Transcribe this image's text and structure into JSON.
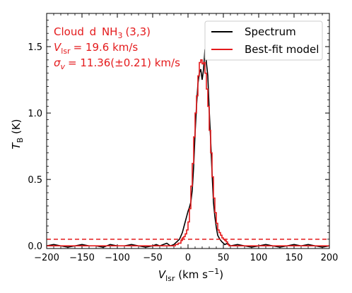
{
  "chart_data": {
    "type": "line",
    "xlabel": "V_lsr (km s^-1)",
    "ylabel": "T_B (K)",
    "xlim": [
      -200,
      200
    ],
    "ylim": [
      -0.02,
      1.75
    ],
    "xticks": [
      -200,
      -150,
      -100,
      -50,
      0,
      50,
      100,
      150,
      200
    ],
    "yticks": [
      0.0,
      0.5,
      1.0,
      1.5
    ],
    "xtick_labels": [
      "−200",
      "−150",
      "−100",
      "−50",
      "0",
      "50",
      "100",
      "150",
      "200"
    ],
    "ytick_labels": [
      "0.0",
      "0.5",
      "1.0",
      "1.5"
    ],
    "legend_position": "top-right",
    "colors": {
      "spectrum": "#000000",
      "model": "#e41a1c",
      "annotation": "#e41a1c"
    },
    "annotations": {
      "line1_prefix": "Cloud",
      "line1_cloud": "d",
      "line1_mol": "NH",
      "line1_sub": "3",
      "line1_trans": "(3,3)",
      "line2_var": "V",
      "line2_sub": "lsr",
      "line2_value": "= 19.6 km/s",
      "line3_var": "σ",
      "line3_sub": "v",
      "line3_value": "= 11.36(±0.21) km/s"
    },
    "threshold_line": {
      "y": 0.05,
      "style": "dashed"
    },
    "series": [
      {
        "name": "Spectrum",
        "style": "line",
        "x": [
          -200,
          -190,
          -180,
          -170,
          -160,
          -150,
          -140,
          -130,
          -120,
          -110,
          -100,
          -90,
          -80,
          -70,
          -60,
          -50,
          -45,
          -40,
          -35,
          -30,
          -25,
          -20,
          -16,
          -12,
          -8,
          -5,
          -2,
          0,
          2,
          4,
          6,
          8,
          10,
          12,
          14,
          16,
          18,
          20,
          22,
          24,
          26,
          28,
          30,
          32,
          34,
          36,
          38,
          40,
          42,
          45,
          48,
          52,
          56,
          60,
          70,
          80,
          90,
          100,
          110,
          120,
          130,
          140,
          150,
          160,
          170,
          180,
          190,
          200
        ],
        "y": [
          0.0,
          0.01,
          0.0,
          -0.01,
          0.0,
          0.01,
          0.0,
          0.0,
          -0.01,
          0.01,
          0.0,
          0.0,
          0.01,
          0.0,
          -0.01,
          0.0,
          0.01,
          0.0,
          0.01,
          0.02,
          0.0,
          0.01,
          0.03,
          0.05,
          0.1,
          0.16,
          0.22,
          0.26,
          0.29,
          0.33,
          0.42,
          0.6,
          0.85,
          1.05,
          1.22,
          1.3,
          1.33,
          1.25,
          1.33,
          1.48,
          1.38,
          1.28,
          1.02,
          0.8,
          0.55,
          0.33,
          0.22,
          0.14,
          0.08,
          0.05,
          0.03,
          0.01,
          0.02,
          0.0,
          0.01,
          0.0,
          -0.01,
          0.0,
          0.01,
          0.0,
          -0.01,
          0.0,
          0.01,
          0.0,
          0.01,
          0.0,
          -0.01,
          0.0
        ]
      },
      {
        "name": "Best-fit model",
        "style": "step",
        "x": [
          -200,
          -30,
          -26,
          -22,
          -18,
          -14,
          -10,
          -8,
          -6,
          -4,
          -2,
          0,
          2,
          4,
          6,
          8,
          10,
          12,
          14,
          16,
          18,
          20,
          22,
          24,
          26,
          28,
          30,
          32,
          34,
          36,
          38,
          40,
          42,
          44,
          46,
          48,
          50,
          52,
          54,
          56,
          58,
          62,
          66,
          70,
          200
        ],
        "y": [
          0.0,
          0.0,
          0.0,
          0.0,
          0.01,
          0.02,
          0.04,
          0.06,
          0.07,
          0.09,
          0.12,
          0.18,
          0.28,
          0.45,
          0.62,
          0.82,
          1.0,
          1.13,
          1.28,
          1.38,
          1.4,
          1.37,
          1.38,
          1.3,
          1.18,
          1.05,
          0.87,
          0.7,
          0.52,
          0.36,
          0.25,
          0.17,
          0.12,
          0.1,
          0.08,
          0.06,
          0.05,
          0.04,
          0.03,
          0.01,
          0.0,
          0.0,
          0.0,
          0.0,
          0.0
        ]
      }
    ]
  }
}
